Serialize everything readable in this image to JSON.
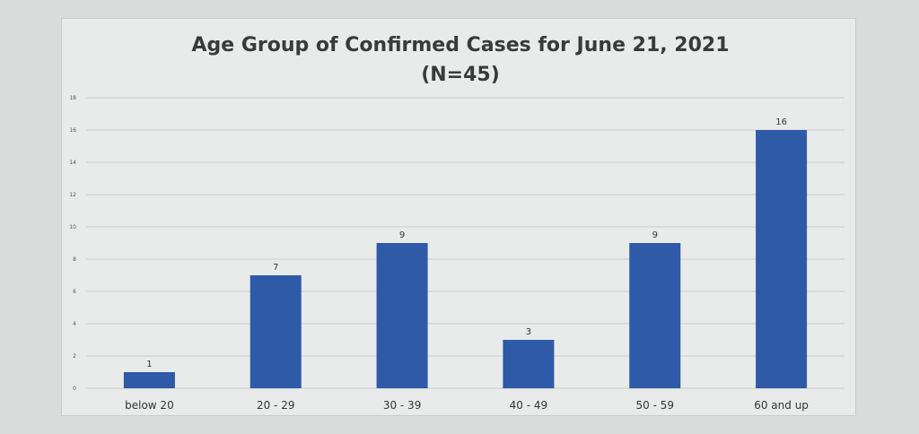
{
  "chart_data": {
    "type": "bar",
    "title": "Age Group of Confirmed Cases for June 21, 2021",
    "subtitle": "(N=45)",
    "categories": [
      "below 20",
      "20 - 29",
      "30 - 39",
      "40 - 49",
      "50 - 59",
      "60 and up"
    ],
    "values": [
      1,
      7,
      9,
      3,
      9,
      16
    ],
    "data_labels": [
      "1",
      "7",
      "9",
      "3",
      "9",
      "16"
    ],
    "yticks": [
      "0",
      "2",
      "4",
      "6",
      "8",
      "10",
      "12",
      "14",
      "16",
      "18"
    ],
    "ylim": [
      0,
      18
    ],
    "xlabel": "",
    "ylabel": "",
    "grid": true,
    "legend": "none",
    "bar_color": "#2e5aa8"
  }
}
